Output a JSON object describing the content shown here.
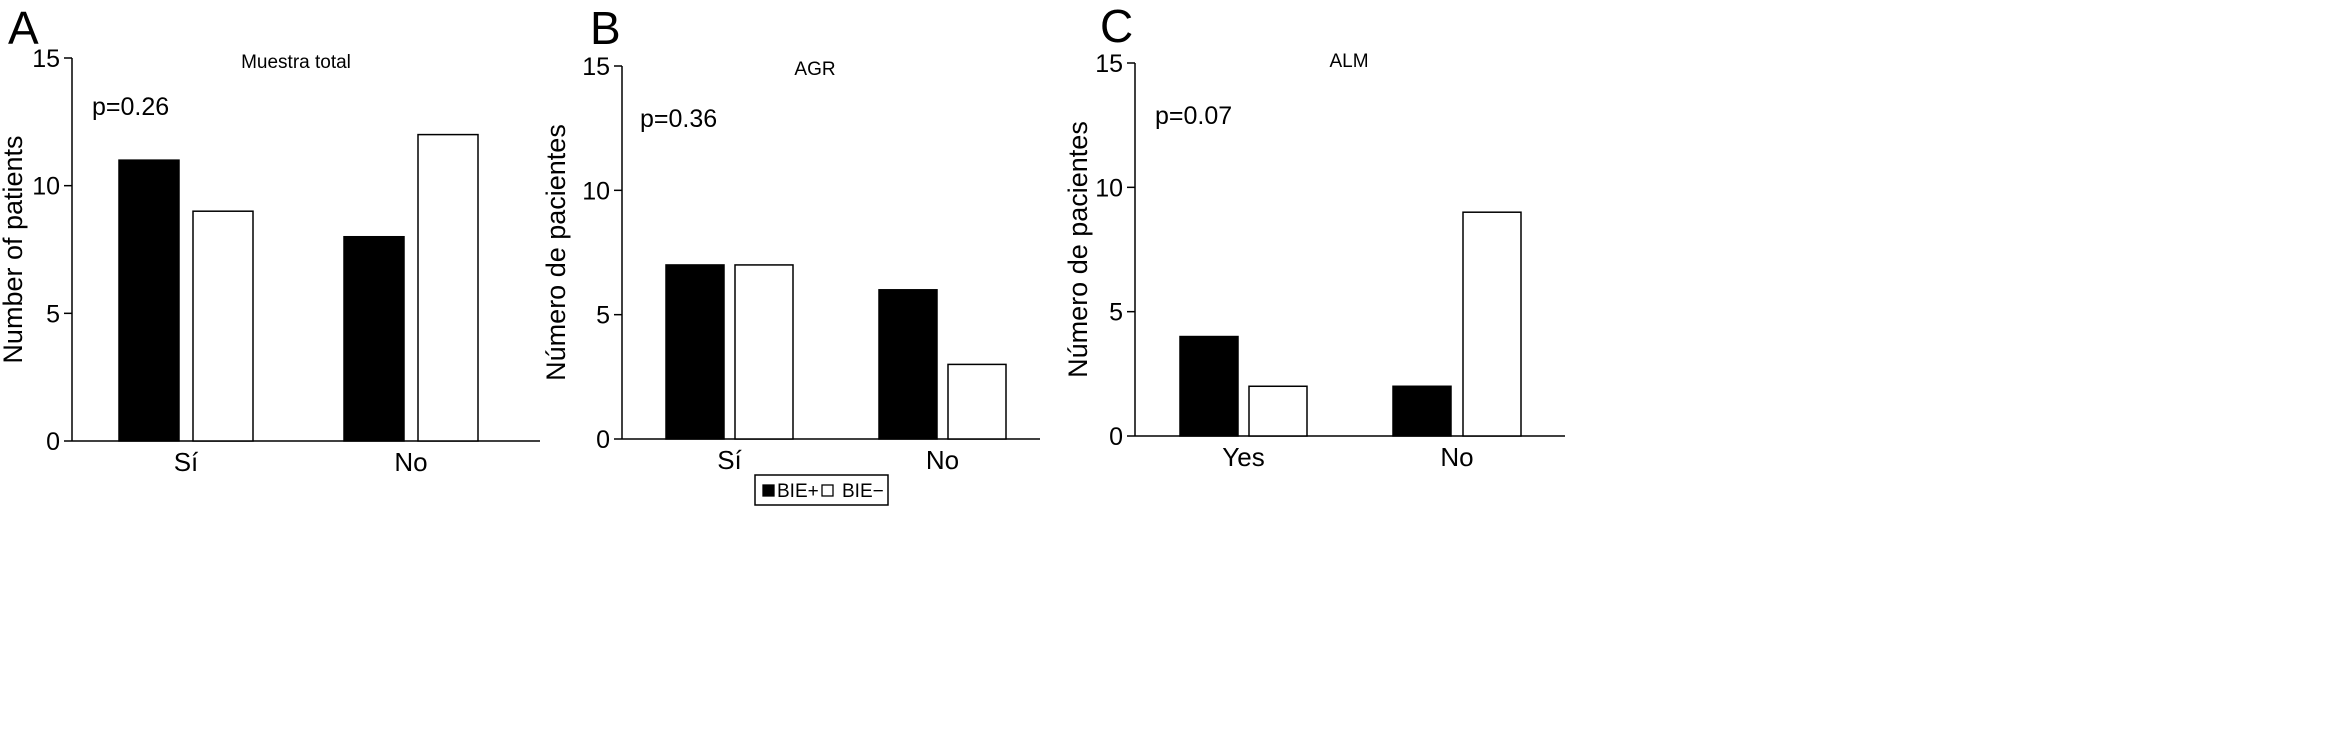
{
  "chart_data": [
    {
      "type": "bar",
      "panel_letter": "A",
      "title": "Muestra total",
      "annotation": "p=0.26",
      "ylabel": "Number of patients",
      "xlabel": "",
      "categories": [
        "Sí",
        "No"
      ],
      "series": [
        {
          "name": "BIE+",
          "values": [
            11,
            8
          ]
        },
        {
          "name": "BIE−",
          "values": [
            9,
            12
          ]
        }
      ],
      "ylim": [
        0,
        15
      ],
      "yticks": [
        0,
        5,
        10,
        15
      ],
      "grid": false
    },
    {
      "type": "bar",
      "panel_letter": "B",
      "title": "AGR",
      "annotation": "p=0.36",
      "ylabel": "Número de pacientes",
      "xlabel": "",
      "categories": [
        "Sí",
        "No"
      ],
      "series": [
        {
          "name": "BIE+",
          "values": [
            7,
            6
          ]
        },
        {
          "name": "BIE−",
          "values": [
            7,
            3
          ]
        }
      ],
      "ylim": [
        0,
        15
      ],
      "yticks": [
        0,
        5,
        10,
        15
      ],
      "grid": false
    },
    {
      "type": "bar",
      "panel_letter": "C",
      "title": "ALM",
      "annotation": "p=0.07",
      "ylabel": "Número de pacientes",
      "xlabel": "",
      "categories": [
        "Yes",
        "No"
      ],
      "series": [
        {
          "name": "BIE+",
          "values": [
            4,
            2
          ]
        },
        {
          "name": "BIE−",
          "values": [
            2,
            9
          ]
        }
      ],
      "ylim": [
        0,
        15
      ],
      "yticks": [
        0,
        5,
        10,
        15
      ],
      "grid": false
    }
  ],
  "legend": {
    "placement": "bottom-center",
    "items": [
      {
        "label": "BIE+",
        "color": "#000000"
      },
      {
        "label": "BIE−",
        "color": "#ffffff"
      }
    ]
  },
  "colors": {
    "series_1": "#000000",
    "series_2": "#ffffff",
    "stroke": "#000000"
  }
}
